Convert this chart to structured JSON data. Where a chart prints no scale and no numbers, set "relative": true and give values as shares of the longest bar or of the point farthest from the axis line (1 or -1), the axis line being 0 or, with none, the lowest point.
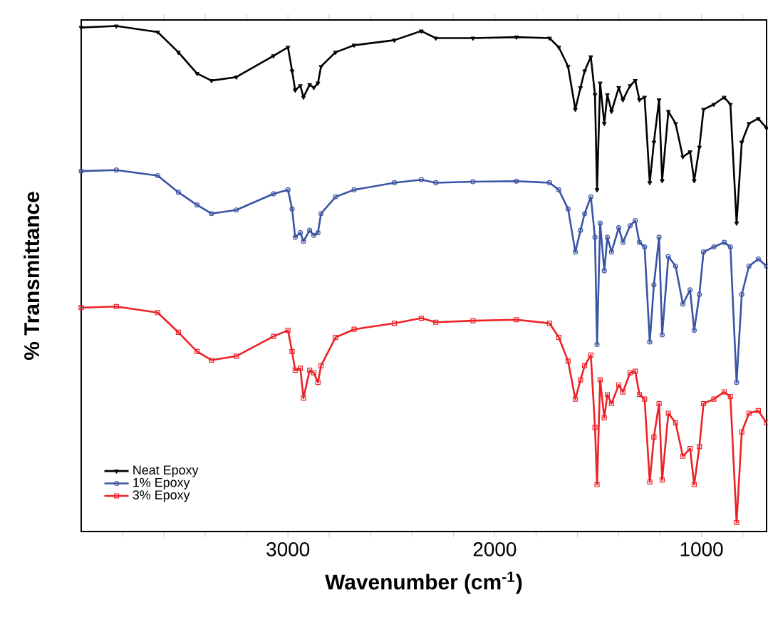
{
  "chart_data": {
    "type": "line",
    "relative": true,
    "xlabel": "Wavenumber (cm$^{-1}$)",
    "ylabel": "% Transmittance",
    "xlim": [
      4000,
      685
    ],
    "xticks": [
      {
        "value": 3800,
        "label": null
      },
      {
        "value": 3600,
        "label": null
      },
      {
        "value": 3400,
        "label": null
      },
      {
        "value": 3200,
        "label": null
      },
      3000,
      {
        "value": 2800,
        "label": null
      },
      {
        "value": 2600,
        "label": null
      },
      {
        "value": 2400,
        "label": null
      },
      {
        "value": 2200,
        "label": null
      },
      2000,
      {
        "value": 1800,
        "label": null
      },
      {
        "value": 1600,
        "label": null
      },
      {
        "value": 1400,
        "label": null
      },
      {
        "value": 1200,
        "label": null
      },
      1000,
      {
        "value": 800,
        "label": null
      }
    ],
    "tick_labels": "x",
    "legend": "bottom left",
    "x": [
      4000,
      3830,
      3630,
      3530,
      3440,
      3370,
      3250,
      3070,
      3000,
      2980,
      2965,
      2940,
      2925,
      2895,
      2875,
      2855,
      2840,
      2770,
      2680,
      2485,
      2355,
      2285,
      2105,
      1895,
      1735,
      1690,
      1645,
      1610,
      1585,
      1565,
      1535,
      1515,
      1505,
      1490,
      1470,
      1455,
      1435,
      1400,
      1380,
      1345,
      1320,
      1300,
      1275,
      1250,
      1230,
      1205,
      1190,
      1160,
      1125,
      1090,
      1055,
      1035,
      1010,
      990,
      940,
      890,
      860,
      830,
      805,
      770,
      725,
      685
    ],
    "series": [
      {
        "name": "Neat Epoxy",
        "color": "#000000",
        "marker": "triangle",
        "values": [
          0.997,
          1.0,
          0.988,
          0.948,
          0.906,
          0.892,
          0.899,
          0.941,
          0.958,
          0.911,
          0.873,
          0.882,
          0.859,
          0.884,
          0.878,
          0.887,
          0.92,
          0.948,
          0.962,
          0.972,
          0.99,
          0.976,
          0.976,
          0.978,
          0.976,
          0.958,
          0.92,
          0.835,
          0.878,
          0.911,
          0.939,
          0.864,
          0.676,
          0.887,
          0.807,
          0.864,
          0.831,
          0.878,
          0.854,
          0.882,
          0.892,
          0.854,
          0.859,
          0.69,
          0.77,
          0.854,
          0.694,
          0.831,
          0.807,
          0.741,
          0.751,
          0.694,
          0.76,
          0.835,
          0.845,
          0.859,
          0.845,
          0.61,
          0.77,
          0.807,
          0.817,
          0.798
        ]
      },
      {
        "name": "1% Epoxy",
        "color": "#3a53a4",
        "marker": "circle",
        "values": [
          0.713,
          0.715,
          0.704,
          0.671,
          0.646,
          0.629,
          0.636,
          0.668,
          0.676,
          0.638,
          0.582,
          0.591,
          0.574,
          0.596,
          0.586,
          0.591,
          0.629,
          0.662,
          0.676,
          0.69,
          0.696,
          0.69,
          0.692,
          0.693,
          0.69,
          0.676,
          0.638,
          0.553,
          0.596,
          0.629,
          0.662,
          0.582,
          0.37,
          0.61,
          0.516,
          0.582,
          0.553,
          0.601,
          0.572,
          0.605,
          0.615,
          0.572,
          0.563,
          0.375,
          0.488,
          0.582,
          0.389,
          0.544,
          0.525,
          0.45,
          0.478,
          0.398,
          0.469,
          0.553,
          0.563,
          0.572,
          0.563,
          0.295,
          0.469,
          0.525,
          0.539,
          0.525
        ]
      },
      {
        "name": "3% Epoxy",
        "color": "#ec2227",
        "marker": "square",
        "values": [
          0.443,
          0.445,
          0.433,
          0.394,
          0.356,
          0.339,
          0.347,
          0.386,
          0.398,
          0.356,
          0.319,
          0.323,
          0.264,
          0.319,
          0.314,
          0.295,
          0.328,
          0.384,
          0.4,
          0.412,
          0.422,
          0.414,
          0.417,
          0.419,
          0.412,
          0.384,
          0.337,
          0.262,
          0.3,
          0.328,
          0.349,
          0.206,
          0.093,
          0.3,
          0.225,
          0.271,
          0.253,
          0.29,
          0.276,
          0.314,
          0.317,
          0.271,
          0.262,
          0.098,
          0.187,
          0.253,
          0.102,
          0.234,
          0.215,
          0.149,
          0.164,
          0.093,
          0.168,
          0.253,
          0.262,
          0.276,
          0.267,
          0.018,
          0.197,
          0.234,
          0.239,
          0.215
        ]
      }
    ]
  }
}
